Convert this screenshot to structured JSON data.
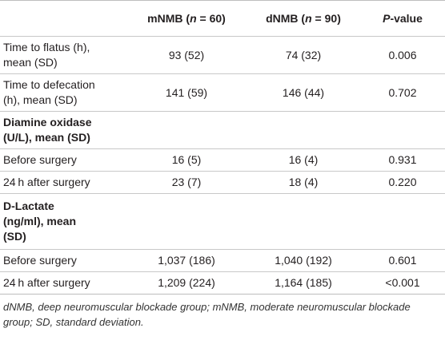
{
  "table": {
    "columns": [
      [
        "mNMB (",
        "n",
        " = 60)"
      ],
      [
        "dNMB (",
        "n",
        " = 90)"
      ],
      [
        "P",
        "-value"
      ]
    ],
    "rows": [
      {
        "label": [
          "Time to flatus (h),",
          "mean (SD)"
        ],
        "cells": [
          "93 (52)",
          "74 (32)",
          "0.006"
        ]
      },
      {
        "label": [
          "Time to defecation",
          "(h), mean (SD)"
        ],
        "cells": [
          "141 (59)",
          "146 (44)",
          "0.702"
        ]
      },
      {
        "section": [
          "Diamine oxidase",
          "(U/L), mean (SD)"
        ]
      },
      {
        "label": [
          "Before surgery"
        ],
        "cells": [
          "16 (5)",
          "16 (4)",
          "0.931"
        ]
      },
      {
        "label": [
          "24 h after surgery"
        ],
        "cells": [
          "23 (7)",
          "18 (4)",
          "0.220"
        ]
      },
      {
        "section": [
          "D-Lactate",
          "(ng/ml), mean",
          "(SD)"
        ]
      },
      {
        "label": [
          "Before surgery"
        ],
        "cells": [
          "1,037 (186)",
          "1,040 (192)",
          "0.601"
        ]
      },
      {
        "label": [
          "24 h after surgery"
        ],
        "cells": [
          "1,209 (224)",
          "1,164 (185)",
          "<0.001"
        ]
      }
    ],
    "footnote": [
      "dNMB, deep neuromuscular blockade group; mNMB, moderate neuromuscular blockade",
      "group; SD, standard deviation."
    ]
  }
}
